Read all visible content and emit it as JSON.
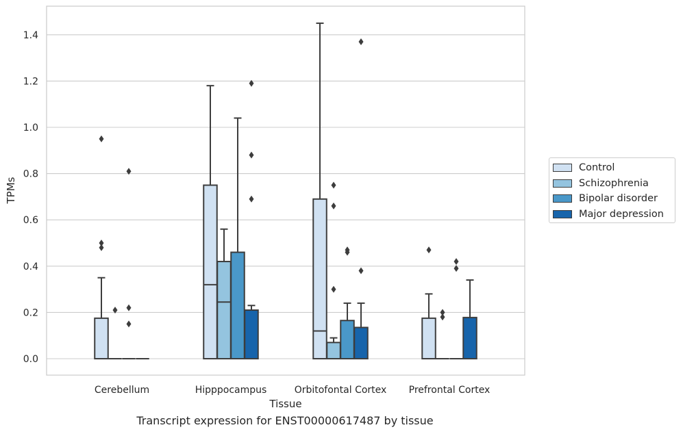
{
  "chart_data": {
    "type": "box",
    "title": "Transcript expression for ENST00000617487 by tissue",
    "xlabel": "Tissue",
    "ylabel": "TPMs",
    "ylim": [
      -0.07,
      1.53
    ],
    "yticks": [
      0.0,
      0.2,
      0.4,
      0.6,
      0.8,
      1.0,
      1.2,
      1.4
    ],
    "ytick_labels": [
      "0.0",
      "0.2",
      "0.4",
      "0.6",
      "0.8",
      "1.0",
      "1.2",
      "1.4"
    ],
    "grid": true,
    "legend_position": "outside-right",
    "categories": [
      "Cerebellum",
      "Hipppocampus",
      "Orbitofontal Cortex",
      "Prefrontal Cortex"
    ],
    "series": [
      {
        "name": "Control",
        "color": "#d0e1f2",
        "boxes": [
          {
            "q1": 0,
            "median": 0,
            "q3": 0.175,
            "whisker_low": 0,
            "whisker_high": 0.35,
            "outliers": [
              0.48,
              0.5,
              0.95
            ]
          },
          {
            "q1": 0,
            "median": 0.32,
            "q3": 0.75,
            "whisker_low": 0,
            "whisker_high": 1.18,
            "outliers": []
          },
          {
            "q1": 0,
            "median": 0.12,
            "q3": 0.69,
            "whisker_low": 0,
            "whisker_high": 1.45,
            "outliers": []
          },
          {
            "q1": 0,
            "median": 0,
            "q3": 0.175,
            "whisker_low": 0,
            "whisker_high": 0.28,
            "outliers": [
              0.47
            ]
          }
        ]
      },
      {
        "name": "Schizophrenia",
        "color": "#94c4df",
        "boxes": [
          {
            "q1": 0,
            "median": 0,
            "q3": 0,
            "whisker_low": 0,
            "whisker_high": 0,
            "outliers": [
              0.21
            ]
          },
          {
            "q1": 0,
            "median": 0.245,
            "q3": 0.42,
            "whisker_low": 0,
            "whisker_high": 0.56,
            "outliers": []
          },
          {
            "q1": 0,
            "median": 0,
            "q3": 0.07,
            "whisker_low": 0,
            "whisker_high": 0.09,
            "outliers": [
              0.3,
              0.66,
              0.75
            ]
          },
          {
            "q1": 0,
            "median": 0,
            "q3": 0,
            "whisker_low": 0,
            "whisker_high": 0,
            "outliers": [
              0.18,
              0.2
            ]
          }
        ]
      },
      {
        "name": "Bipolar disorder",
        "color": "#4a98c9",
        "boxes": [
          {
            "q1": 0,
            "median": 0,
            "q3": 0,
            "whisker_low": 0,
            "whisker_high": 0,
            "outliers": [
              0.15,
              0.22,
              0.81
            ]
          },
          {
            "q1": 0,
            "median": 0,
            "q3": 0.46,
            "whisker_low": 0,
            "whisker_high": 1.04,
            "outliers": []
          },
          {
            "q1": 0,
            "median": 0,
            "q3": 0.165,
            "whisker_low": 0,
            "whisker_high": 0.24,
            "outliers": [
              0.46,
              0.47
            ]
          },
          {
            "q1": 0,
            "median": 0,
            "q3": 0,
            "whisker_low": 0,
            "whisker_high": 0,
            "outliers": [
              0.39,
              0.42
            ]
          }
        ]
      },
      {
        "name": "Major depression",
        "color": "#1764ab",
        "boxes": [
          {
            "q1": 0,
            "median": 0,
            "q3": 0,
            "whisker_low": 0,
            "whisker_high": 0,
            "outliers": []
          },
          {
            "q1": 0,
            "median": 0,
            "q3": 0.21,
            "whisker_low": 0,
            "whisker_high": 0.23,
            "outliers": [
              0.69,
              0.88,
              1.19
            ]
          },
          {
            "q1": 0,
            "median": 0,
            "q3": 0.135,
            "whisker_low": 0,
            "whisker_high": 0.24,
            "outliers": [
              0.38,
              1.37
            ]
          },
          {
            "q1": 0,
            "median": 0,
            "q3": 0.178,
            "whisker_low": 0,
            "whisker_high": 0.34,
            "outliers": []
          }
        ]
      }
    ]
  }
}
